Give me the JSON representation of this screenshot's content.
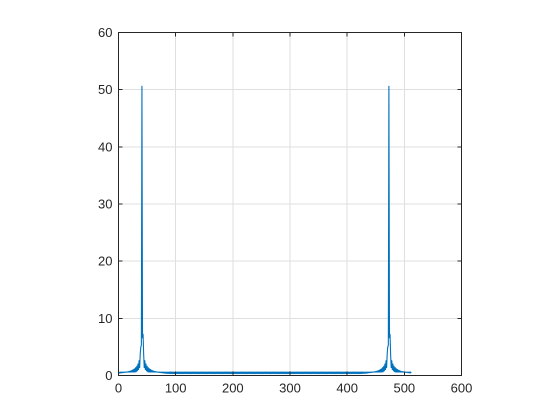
{
  "chart_data": {
    "type": "line",
    "title": "",
    "xlabel": "",
    "ylabel": "",
    "xlim": [
      0,
      600
    ],
    "ylim": [
      0,
      60
    ],
    "x_ticks": [
      0,
      100,
      200,
      300,
      400,
      500,
      600
    ],
    "y_ticks": [
      0,
      10,
      20,
      30,
      40,
      50,
      60
    ],
    "x_tick_labels": [
      "0",
      "100",
      "200",
      "300",
      "400",
      "500",
      "600"
    ],
    "y_tick_labels": [
      "0",
      "10",
      "20",
      "30",
      "40",
      "50",
      "60"
    ],
    "grid": true,
    "line_color": "#0072bd",
    "series": [
      {
        "description": "magnitude spectrum, n = 1..512, peaks near n=41 and n=473",
        "x_start": 1,
        "x_end": 512,
        "peak_value": 50.6,
        "peak_positions": [
          41,
          473
        ],
        "sidelobe_peak": 12.0,
        "floor_value": 0.6
      }
    ]
  }
}
